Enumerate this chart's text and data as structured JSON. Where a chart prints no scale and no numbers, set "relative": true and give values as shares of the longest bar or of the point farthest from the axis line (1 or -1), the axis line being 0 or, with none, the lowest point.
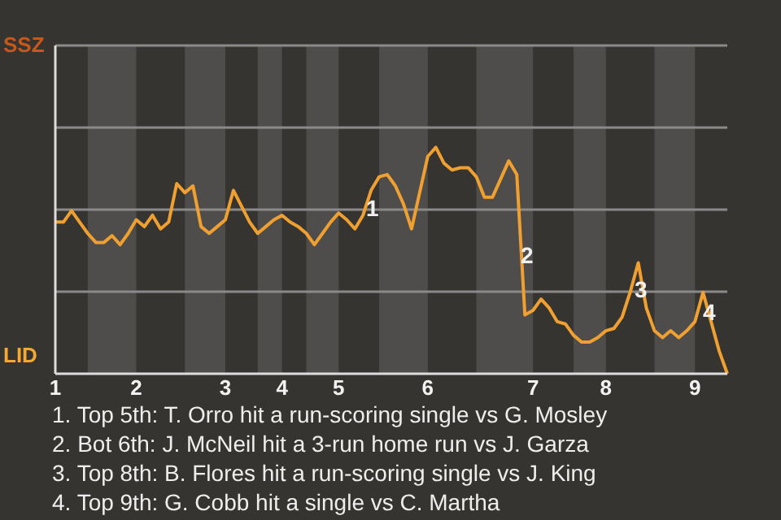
{
  "chart_data": {
    "type": "line",
    "relative": true,
    "categories": [
      "1",
      null,
      null,
      null,
      null,
      null,
      null,
      null,
      null,
      null,
      "2",
      null,
      null,
      null,
      null,
      null,
      null,
      null,
      null,
      null,
      null,
      "3",
      null,
      null,
      null,
      null,
      null,
      null,
      "4",
      null,
      null,
      null,
      null,
      null,
      null,
      "5",
      null,
      null,
      null,
      null,
      null,
      null,
      null,
      null,
      null,
      null,
      "6",
      null,
      null,
      null,
      null,
      null,
      null,
      null,
      null,
      null,
      null,
      null,
      null,
      "7",
      null,
      null,
      null,
      null,
      null,
      null,
      null,
      null,
      "8",
      null,
      null,
      null,
      null,
      null,
      null,
      null,
      null,
      null,
      null,
      "9",
      null,
      null,
      null,
      null
    ],
    "marker": "none",
    "line_style": "solid",
    "ref_lines": [
      {
        "axis": "y",
        "value": 0.3625,
        "color": "#8a8a8a"
      },
      {
        "axis": "y",
        "value": 0.725,
        "color": "#8a8a8a"
      },
      {
        "axis": "y",
        "value": 1.0875,
        "color": "#8a8a8a"
      },
      {
        "axis": "y",
        "value": 1.45,
        "color": "#8a8a8a"
      }
    ],
    "series": [
      {
        "color": "#f0a030",
        "values": [
          0.67,
          0.67,
          0.72,
          0.67,
          0.62,
          0.58,
          0.58,
          0.61,
          0.57,
          0.62,
          0.68,
          0.65,
          0.7,
          0.64,
          0.67,
          0.84,
          0.8,
          0.83,
          0.65,
          0.62,
          0.65,
          0.68,
          0.81,
          0.74,
          0.67,
          0.62,
          0.65,
          0.68,
          0.7,
          0.67,
          0.65,
          0.62,
          0.57,
          0.62,
          0.67,
          0.71,
          0.68,
          0.64,
          0.7,
          0.81,
          0.87,
          0.88,
          0.83,
          0.75,
          0.64,
          0.8,
          0.96,
          1,
          0.93,
          0.9,
          0.91,
          0.91,
          0.87,
          0.78,
          0.78,
          0.86,
          0.94,
          0.88,
          0.26,
          0.28,
          0.33,
          0.29,
          0.23,
          0.22,
          0.17,
          0.14,
          0.14,
          0.16,
          0.19,
          0.2,
          0.25,
          0.36,
          0.49,
          0.29,
          0.19,
          0.16,
          0.19,
          0.16,
          0.19,
          0.23,
          0.36,
          0.23,
          0.1,
          0
        ]
      }
    ],
    "annotations": [
      "SSZ",
      "LID",
      "1",
      "2",
      "3",
      "4",
      "1. Top 5th: T. Orro hit a run-scoring single vs G. Mosley",
      "2. Bot 6th: J. McNeil hit a 3-run home run vs J. Garza",
      "3. Top 8th: B. Flores hit a run-scoring single vs J. King",
      "4. Top 9th: G. Cobb hit a single vs C. Martha"
    ]
  }
}
